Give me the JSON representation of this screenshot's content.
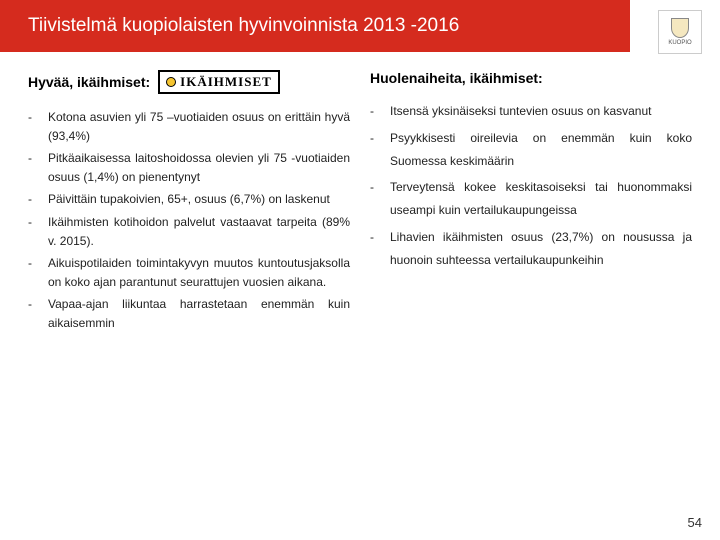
{
  "header": {
    "title": "Tiivistelmä kuopiolaisten hyvinvoinnista 2013 -2016"
  },
  "logo": {
    "label": "KUOPIO"
  },
  "left": {
    "heading": "Hyvää, ikäihmiset:",
    "badge": "IKÄIHMISET",
    "items": [
      "Kotona asuvien yli 75 –vuotiaiden osuus on erittäin hyvä (93,4%)",
      "Pitkäaikaisessa laitoshoidossa olevien yli 75 -vuotiaiden osuus (1,4%) on pienentynyt",
      "Päivittäin tupakoivien, 65+, osuus (6,7%) on laskenut",
      "Ikäihmisten kotihoidon palvelut vastaavat tarpeita (89% v. 2015).",
      "Aikuispotilaiden toimintakyvyn muutos kuntoutusjaksolla on koko ajan parantunut seurattujen vuosien aikana.",
      "Vapaa-ajan liikuntaa harrastetaan enemmän kuin aikaisemmin"
    ]
  },
  "right": {
    "heading": "Huolenaiheita, ikäihmiset:",
    "items": [
      "Itsensä yksinäiseksi tuntevien osuus on kasvanut",
      "Psyykkisesti oireilevia on enemmän kuin koko Suomessa keskimäärin",
      "Terveytensä kokee keskitasoiseksi tai huonommaksi useampi kuin vertailukaupungeissa",
      "Lihavien ikäihmisten osuus (23,7%) on nousussa ja huonoin suhteessa vertailukaupunkeihin"
    ]
  },
  "page_number": "54"
}
